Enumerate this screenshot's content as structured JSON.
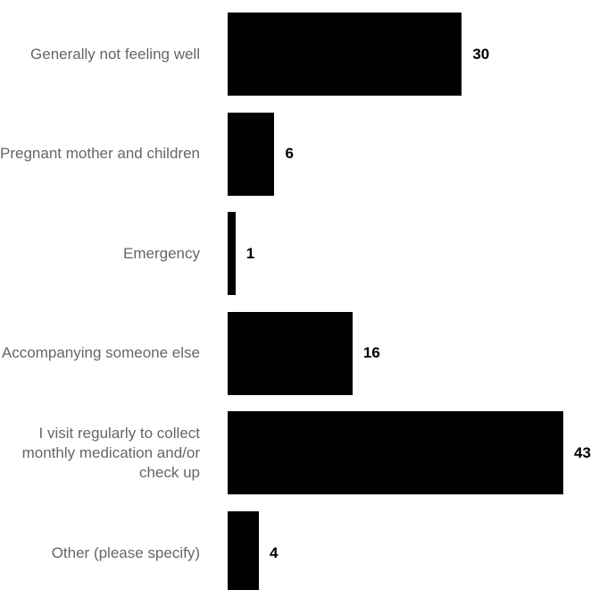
{
  "chart_data": {
    "type": "bar",
    "orientation": "horizontal",
    "categories": [
      "Generally not feeling well",
      "Pregnant mother and children",
      "Emergency",
      "Accompanying someone else",
      "I visit regularly to collect monthly medication and/or check up",
      "Other (please specify)"
    ],
    "values": [
      30,
      6,
      1,
      16,
      43,
      4
    ],
    "color": "#000000"
  }
}
